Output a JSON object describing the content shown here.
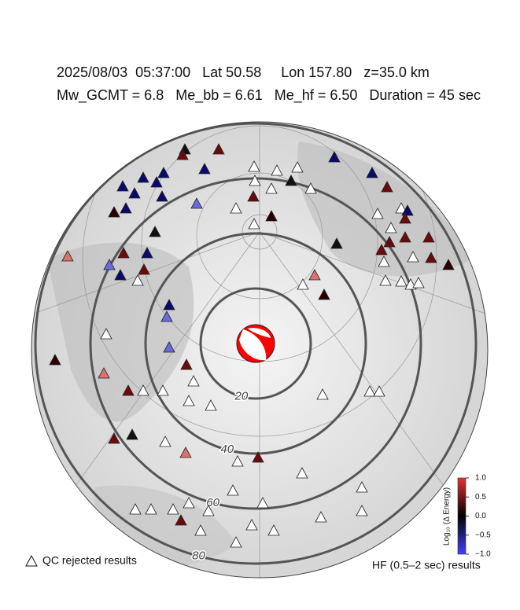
{
  "header": {
    "line1": "2025/08/03  05:37:00   Lat 50.58     Lon 157.80   z=35.0 km",
    "line2": "Mw_GCMT = 6.8   Me_bb = 6.61   Me_hf = 6.50   Duration = 45 sec"
  },
  "distance_rings": {
    "ticks": [
      20,
      40,
      60,
      80
    ]
  },
  "colorbar": {
    "label": "Log₁₀ (Δ Energy)",
    "ticks": [
      {
        "value": 1,
        "label": "1.0"
      },
      {
        "value": 0.5,
        "label": "0.5"
      },
      {
        "value": 0,
        "label": "0.0"
      },
      {
        "value": -0.5,
        "label": "−0.5"
      },
      {
        "value": -1,
        "label": "−1.0"
      }
    ],
    "lim": [
      -1,
      1
    ]
  },
  "legend": {
    "qc_rejected": "QC rejected results",
    "hf_results": "HF (0.5–2 sec) results"
  }
}
